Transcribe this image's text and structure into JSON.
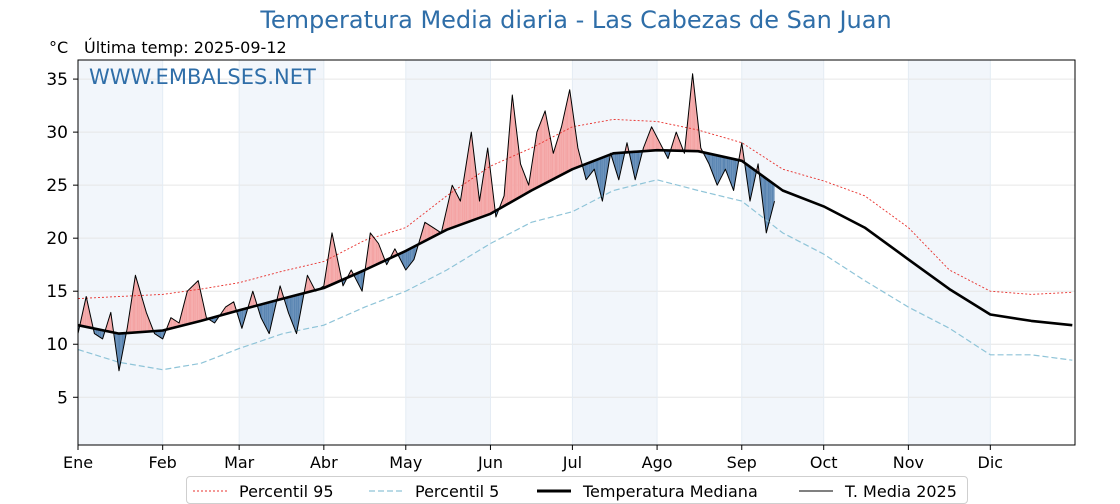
{
  "title": "Temperatura Media diaria - Las Cabezas de San Juan",
  "unit_label": "°C",
  "last_temp_label": "Última temp: 2025-09-12",
  "watermark": "WWW.EMBALSES.NET",
  "legend": [
    {
      "label": "Percentil 95",
      "style": "dotted-red"
    },
    {
      "label": "Percentil 5",
      "style": "dashed-lightblue"
    },
    {
      "label": "Temperatura Mediana",
      "style": "thick-black"
    },
    {
      "label": "T. Media 2025",
      "style": "thin-black"
    }
  ],
  "colors": {
    "p95": "#e8302c",
    "p5": "#8fc4d8",
    "median": "#000000",
    "year": "#000000",
    "above_fill": "#f4a4a4",
    "below_fill": "#5b86b3",
    "shade": "#f2f6fb",
    "title": "#2f6ea8"
  },
  "chart_data": {
    "type": "line",
    "title": "Temperatura Media diaria - Las Cabezas de San Juan",
    "ylabel": "°C",
    "ylim": [
      0.5,
      36.8
    ],
    "yticks": [
      5,
      10,
      15,
      20,
      25,
      30,
      35
    ],
    "xlim": [
      0,
      365
    ],
    "month_labels": [
      "Ene",
      "Feb",
      "Mar",
      "Abr",
      "May",
      "Jun",
      "Jul",
      "Ago",
      "Sep",
      "Oct",
      "Nov",
      "Dic"
    ],
    "month_start_days": [
      0,
      31,
      59,
      90,
      120,
      151,
      181,
      212,
      243,
      273,
      304,
      334
    ],
    "grid": true,
    "legend_position": "bottom",
    "series": [
      {
        "name": "Percentil 95",
        "x": [
          0,
          15,
          31,
          45,
          59,
          75,
          90,
          105,
          120,
          135,
          151,
          166,
          181,
          196,
          212,
          227,
          243,
          258,
          273,
          288,
          304,
          319,
          334,
          349,
          364
        ],
        "values": [
          14.3,
          14.5,
          14.7,
          15.2,
          15.8,
          16.9,
          17.8,
          19.8,
          21.0,
          24.0,
          26.8,
          28.5,
          30.5,
          31.2,
          31.0,
          30.2,
          29.0,
          26.5,
          25.4,
          24.0,
          21.0,
          17.0,
          15.0,
          14.7,
          14.9
        ]
      },
      {
        "name": "Percentil 5",
        "x": [
          0,
          15,
          31,
          45,
          59,
          75,
          90,
          105,
          120,
          135,
          151,
          166,
          181,
          196,
          212,
          227,
          243,
          258,
          273,
          288,
          304,
          319,
          334,
          349,
          364
        ],
        "values": [
          9.5,
          8.3,
          7.6,
          8.2,
          9.6,
          11.0,
          11.8,
          13.5,
          15.0,
          17.0,
          19.5,
          21.5,
          22.5,
          24.5,
          25.5,
          24.5,
          23.5,
          20.5,
          18.5,
          16.0,
          13.5,
          11.5,
          9.0,
          9.0,
          8.5
        ]
      },
      {
        "name": "Temperatura Mediana",
        "x": [
          0,
          15,
          31,
          45,
          59,
          75,
          90,
          105,
          120,
          135,
          151,
          166,
          181,
          196,
          212,
          227,
          243,
          258,
          273,
          288,
          304,
          319,
          334,
          349,
          364
        ],
        "values": [
          11.8,
          11.0,
          11.3,
          12.2,
          13.2,
          14.3,
          15.3,
          17.0,
          18.8,
          20.8,
          22.3,
          24.5,
          26.5,
          28.0,
          28.3,
          28.2,
          27.3,
          24.5,
          23.0,
          21.0,
          18.0,
          15.2,
          12.8,
          12.2,
          11.8
        ]
      },
      {
        "name": "T. Media 2025",
        "x": [
          0,
          3,
          6,
          9,
          12,
          15,
          18,
          21,
          25,
          28,
          31,
          34,
          37,
          40,
          44,
          47,
          50,
          54,
          57,
          60,
          64,
          67,
          70,
          74,
          77,
          80,
          84,
          87,
          90,
          93,
          97,
          100,
          104,
          107,
          110,
          113,
          116,
          120,
          123,
          127,
          130,
          133,
          137,
          140,
          144,
          147,
          150,
          153,
          156,
          159,
          162,
          165,
          168,
          171,
          174,
          177,
          180,
          183,
          186,
          189,
          192,
          195,
          198,
          201,
          204,
          207,
          210,
          213,
          216,
          219,
          222,
          225,
          228,
          231,
          234,
          237,
          240,
          243,
          246,
          249,
          252,
          255
        ],
        "values": [
          11.0,
          14.5,
          11.0,
          10.5,
          13.0,
          7.5,
          11.5,
          16.5,
          13.0,
          11.0,
          10.5,
          12.5,
          12.0,
          15.0,
          16.0,
          12.5,
          12.0,
          13.5,
          14.0,
          11.5,
          15.0,
          12.5,
          11.0,
          15.5,
          13.0,
          11.0,
          16.5,
          15.0,
          15.5,
          20.5,
          15.5,
          17.0,
          15.0,
          20.5,
          19.5,
          17.5,
          19.0,
          17.0,
          18.0,
          21.5,
          21.0,
          20.5,
          25.0,
          23.5,
          30.0,
          23.5,
          28.5,
          22.0,
          24.0,
          33.5,
          27.0,
          25.0,
          30.0,
          32.0,
          28.0,
          30.5,
          34.0,
          28.5,
          25.5,
          26.5,
          23.5,
          28.0,
          25.5,
          29.0,
          25.5,
          28.5,
          30.5,
          29.0,
          27.5,
          30.0,
          28.0,
          35.5,
          28.5,
          27.0,
          25.0,
          26.5,
          24.5,
          29.0,
          23.5,
          27.0,
          20.5,
          23.5
        ]
      }
    ]
  }
}
